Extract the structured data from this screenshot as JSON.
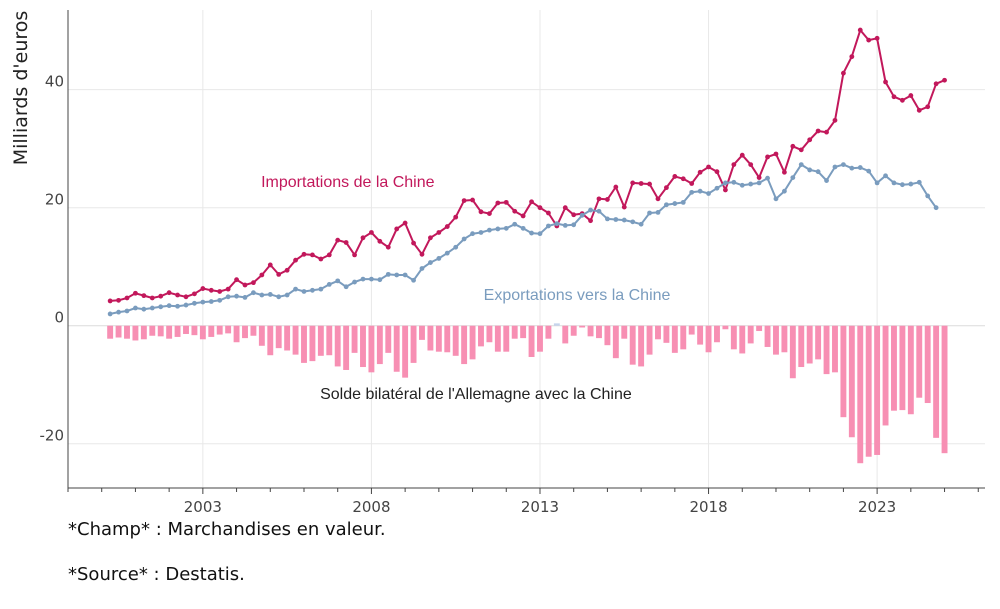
{
  "chart_data": {
    "type": "bar+line",
    "ylabel": "Milliards d'euros",
    "ylim": [
      -27.5,
      53.5
    ],
    "y_ticks": [
      -20,
      0,
      20,
      40
    ],
    "x_ticks": [
      2003,
      2008,
      2013,
      2018,
      2023
    ],
    "xlim": [
      1999.0,
      2026.2
    ],
    "grid": true,
    "series": [
      {
        "name": "Importations de la Chine",
        "type": "line",
        "color": "#c2185b",
        "x_start": 2000.25,
        "x_step": 0.25,
        "values": [
          4.2,
          4.3,
          4.7,
          5.5,
          5.1,
          4.7,
          5.0,
          5.6,
          5.2,
          4.9,
          5.4,
          6.3,
          6.0,
          5.8,
          6.2,
          7.8,
          6.9,
          7.3,
          8.6,
          10.3,
          8.7,
          9.4,
          11.1,
          12.1,
          12.0,
          11.3,
          12.0,
          14.5,
          14.1,
          12.0,
          14.9,
          15.8,
          14.3,
          13.3,
          16.4,
          17.4,
          14.0,
          12.1,
          14.9,
          15.8,
          16.8,
          18.4,
          21.2,
          21.3,
          19.3,
          19.0,
          20.8,
          20.9,
          19.4,
          18.6,
          21.0,
          20.0,
          19.1,
          16.9,
          20.0,
          18.8,
          19.0,
          17.8,
          21.5,
          21.4,
          23.5,
          20.1,
          24.2,
          24.1,
          24.0,
          21.5,
          23.4,
          25.3,
          24.9,
          24.1,
          26.0,
          26.9,
          26.1,
          23.0,
          27.3,
          28.9,
          27.3,
          25.1,
          28.6,
          29.1,
          26.0,
          30.4,
          29.8,
          31.5,
          33.0,
          32.8,
          34.8,
          42.8,
          45.6,
          50.1,
          48.4,
          48.7,
          41.3,
          38.8,
          38.2,
          39.0,
          36.5,
          37.1,
          41.0,
          41.6
        ]
      },
      {
        "name": "Exportations vers la Chine",
        "type": "line",
        "color": "#7a9cbe",
        "x_start": 2000.25,
        "x_step": 0.25,
        "values": [
          2.0,
          2.3,
          2.5,
          3.0,
          2.8,
          3.0,
          3.2,
          3.4,
          3.3,
          3.5,
          3.8,
          4.0,
          4.1,
          4.3,
          4.9,
          5.0,
          4.8,
          5.6,
          5.2,
          5.3,
          4.9,
          5.2,
          6.2,
          5.8,
          6.0,
          6.2,
          7.0,
          7.6,
          6.6,
          7.4,
          7.9,
          7.9,
          7.8,
          8.7,
          8.6,
          8.6,
          7.7,
          9.7,
          10.7,
          11.4,
          12.3,
          13.3,
          14.7,
          15.6,
          15.8,
          16.2,
          16.4,
          16.5,
          17.2,
          16.5,
          15.7,
          15.6,
          16.9,
          17.3,
          17.0,
          17.1,
          18.7,
          19.6,
          19.4,
          18.1,
          18.0,
          17.9,
          17.6,
          17.2,
          19.1,
          19.2,
          20.5,
          20.7,
          20.9,
          22.6,
          22.8,
          22.4,
          23.3,
          24.2,
          24.3,
          23.8,
          24.0,
          24.2,
          25.0,
          21.5,
          22.8,
          25.1,
          27.3,
          26.4,
          26.1,
          24.6,
          26.9,
          27.3,
          26.7,
          26.8,
          26.2,
          24.2,
          25.4,
          24.2,
          23.9,
          24.0,
          24.3,
          22.0,
          20.0
        ]
      },
      {
        "name": "Solde bilatéral de l'Allemagne avec la Chine",
        "type": "bar",
        "color": "#f78fb3",
        "positive_color": "#c6d4ec",
        "x_start": 2000.25,
        "x_step": 0.25,
        "values": [
          -2.2,
          -2.0,
          -2.2,
          -2.5,
          -2.3,
          -1.7,
          -1.8,
          -2.2,
          -1.9,
          -1.4,
          -1.6,
          -2.3,
          -1.9,
          -1.5,
          -1.3,
          -2.8,
          -2.1,
          -1.7,
          -3.4,
          -5.0,
          -3.8,
          -4.2,
          -4.9,
          -6.3,
          -6.0,
          -5.1,
          -5.0,
          -6.9,
          -7.5,
          -4.6,
          -7.0,
          -7.9,
          -6.5,
          -4.6,
          -7.8,
          -8.8,
          -6.3,
          -2.4,
          -4.2,
          -4.4,
          -4.5,
          -5.1,
          -6.5,
          -5.7,
          -3.5,
          -2.8,
          -4.4,
          -4.4,
          -2.2,
          -2.1,
          -5.3,
          -4.4,
          -2.2,
          0.4,
          -3.0,
          -1.7,
          -0.3,
          -1.8,
          -2.1,
          -3.3,
          -5.5,
          -2.2,
          -6.6,
          -6.9,
          -4.9,
          -2.3,
          -2.9,
          -4.6,
          -4.0,
          -1.5,
          -3.2,
          -4.5,
          -2.8,
          -0.6,
          -4.0,
          -4.7,
          -3.0,
          -0.9,
          -3.6,
          -4.9,
          -4.5,
          -8.9,
          -7.0,
          -6.4,
          -5.7,
          -8.2,
          -7.9,
          -15.5,
          -18.9,
          -23.3,
          -22.2,
          -21.9,
          -16.9,
          -14.4,
          -14.3,
          -15.0,
          -12.2,
          -13.1,
          -19.0,
          -21.6
        ]
      }
    ],
    "annotations": [
      {
        "text": "Importations de la Chine",
        "x": 2007.3,
        "y": 23.5,
        "color": "#c2185b"
      },
      {
        "text": "Exportations vers la Chine",
        "x": 2014.1,
        "y": 4.4,
        "color": "#7a9cbe"
      },
      {
        "text": "Solde bilatéral de l'Allemagne avec la Chine",
        "x": 2011.1,
        "y": -12.4,
        "color": "#222222"
      }
    ]
  },
  "notes": {
    "champ": "*Champ* : Marchandises en valeur.",
    "source": "*Source* : Destatis."
  }
}
